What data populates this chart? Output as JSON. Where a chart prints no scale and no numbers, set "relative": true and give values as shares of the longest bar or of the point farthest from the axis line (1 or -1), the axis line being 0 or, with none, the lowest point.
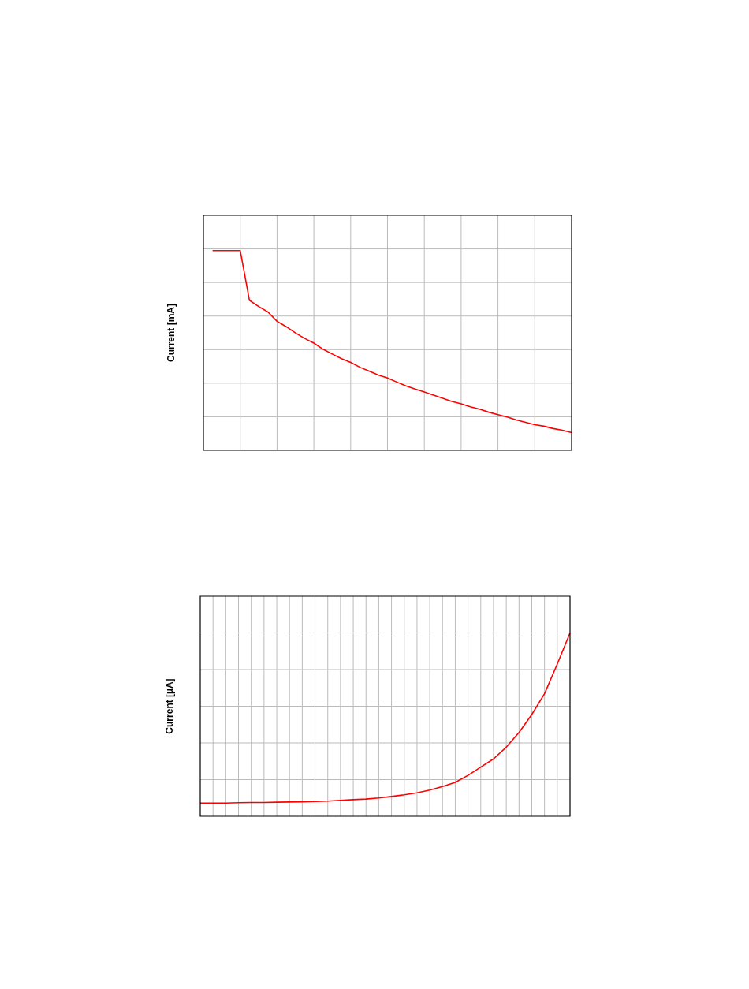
{
  "chart_data": [
    {
      "type": "line",
      "ylabel": "Current [mA]",
      "relative": true,
      "grid": true,
      "legend": false,
      "marker": "none",
      "line_style": "solid",
      "categories": [
        null,
        null,
        null,
        null,
        null,
        null,
        null,
        null,
        null,
        null,
        null,
        null,
        null,
        null,
        null,
        null,
        null,
        null,
        null,
        null,
        null,
        null,
        null,
        null,
        null,
        null,
        null,
        null,
        null,
        null,
        null,
        null,
        null,
        null,
        null,
        null,
        null,
        null,
        null,
        null,
        null
      ],
      "series": [
        {
          "color": "#ff0000",
          "values": [
            null,
            1,
            1,
            1,
            1,
            0.751,
            0.72,
            0.693,
            0.646,
            0.619,
            0.588,
            0.56,
            0.537,
            0.506,
            0.482,
            0.459,
            0.44,
            0.416,
            0.397,
            0.377,
            0.362,
            0.342,
            0.323,
            0.307,
            0.292,
            0.276,
            0.261,
            0.245,
            0.233,
            0.218,
            0.206,
            0.191,
            0.179,
            0.167,
            0.152,
            0.14,
            0.128,
            0.121,
            0.109,
            0.101,
            0.089
          ]
        }
      ]
    },
    {
      "type": "line",
      "ylabel": "Current [µA]",
      "relative": true,
      "grid": true,
      "legend": false,
      "marker": "none",
      "line_style": "solid",
      "categories": [
        null,
        null,
        null,
        null,
        null,
        null,
        null,
        null,
        null,
        null,
        null,
        null,
        null,
        null,
        null,
        null,
        null,
        null,
        null,
        null,
        null,
        null,
        null,
        null,
        null,
        null,
        null,
        null,
        null,
        null
      ],
      "series": [
        {
          "color": "#ff0000",
          "values": [
            0.072,
            0.072,
            0.072,
            0.074,
            0.075,
            0.075,
            0.077,
            0.078,
            0.079,
            0.081,
            0.083,
            0.087,
            0.091,
            0.094,
            0.1,
            0.108,
            0.117,
            0.128,
            0.143,
            0.162,
            0.185,
            0.223,
            0.268,
            0.313,
            0.377,
            0.457,
            0.555,
            0.668,
            0.83,
            1
          ]
        }
      ]
    }
  ]
}
